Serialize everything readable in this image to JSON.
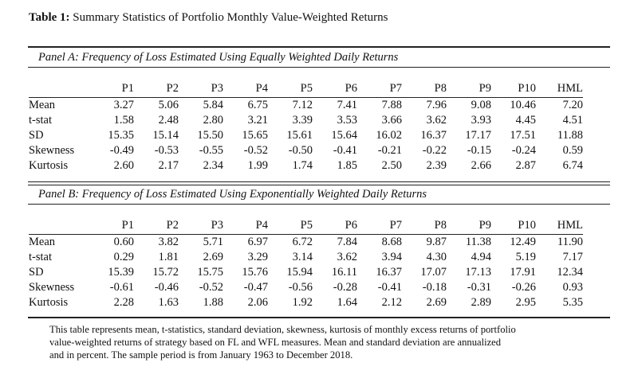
{
  "caption": {
    "label": "Table 1:",
    "text": "Summary Statistics of Portfolio Monthly Value-Weighted Returns"
  },
  "columns": [
    "P1",
    "P2",
    "P3",
    "P4",
    "P5",
    "P6",
    "P7",
    "P8",
    "P9",
    "P10",
    "HML"
  ],
  "panel_a": {
    "title": "Panel A: Frequency of Loss Estimated Using Equally Weighted Daily Returns",
    "rows": [
      {
        "label": "Mean",
        "values": [
          "3.27",
          "5.06",
          "5.84",
          "6.75",
          "7.12",
          "7.41",
          "7.88",
          "7.96",
          "9.08",
          "10.46",
          "7.20"
        ]
      },
      {
        "label": "t-stat",
        "values": [
          "1.58",
          "2.48",
          "2.80",
          "3.21",
          "3.39",
          "3.53",
          "3.66",
          "3.62",
          "3.93",
          "4.45",
          "4.51"
        ]
      },
      {
        "label": "SD",
        "values": [
          "15.35",
          "15.14",
          "15.50",
          "15.65",
          "15.61",
          "15.64",
          "16.02",
          "16.37",
          "17.17",
          "17.51",
          "11.88"
        ]
      },
      {
        "label": "Skewness",
        "values": [
          "-0.49",
          "-0.53",
          "-0.55",
          "-0.52",
          "-0.50",
          "-0.41",
          "-0.21",
          "-0.22",
          "-0.15",
          "-0.24",
          "0.59"
        ]
      },
      {
        "label": "Kurtosis",
        "values": [
          "2.60",
          "2.17",
          "2.34",
          "1.99",
          "1.74",
          "1.85",
          "2.50",
          "2.39",
          "2.66",
          "2.87",
          "6.74"
        ]
      }
    ]
  },
  "panel_b": {
    "title": "Panel B: Frequency of Loss Estimated Using Exponentially Weighted Daily Returns",
    "rows": [
      {
        "label": "Mean",
        "values": [
          "0.60",
          "3.82",
          "5.71",
          "6.97",
          "6.72",
          "7.84",
          "8.68",
          "9.87",
          "11.38",
          "12.49",
          "11.90"
        ]
      },
      {
        "label": "t-stat",
        "values": [
          "0.29",
          "1.81",
          "2.69",
          "3.29",
          "3.14",
          "3.62",
          "3.94",
          "4.30",
          "4.94",
          "5.19",
          "7.17"
        ]
      },
      {
        "label": "SD",
        "values": [
          "15.39",
          "15.72",
          "15.75",
          "15.76",
          "15.94",
          "16.11",
          "16.37",
          "17.07",
          "17.13",
          "17.91",
          "12.34"
        ]
      },
      {
        "label": "Skewness",
        "values": [
          "-0.61",
          "-0.46",
          "-0.52",
          "-0.47",
          "-0.56",
          "-0.28",
          "-0.41",
          "-0.18",
          "-0.31",
          "-0.26",
          "0.93"
        ]
      },
      {
        "label": "Kurtosis",
        "values": [
          "2.28",
          "1.63",
          "1.88",
          "2.06",
          "1.92",
          "1.64",
          "2.12",
          "2.69",
          "2.89",
          "2.95",
          "5.35"
        ]
      }
    ]
  },
  "note": {
    "lines": [
      "This table represents mean, t-statistics, standard deviation, skewness, kurtosis of monthly excess returns of portfolio",
      "value-weighted returns of strategy based on FL and WFL measures. Mean and standard deviation are annualized",
      "and in percent. The sample period is from January 1963 to December 2018."
    ]
  }
}
